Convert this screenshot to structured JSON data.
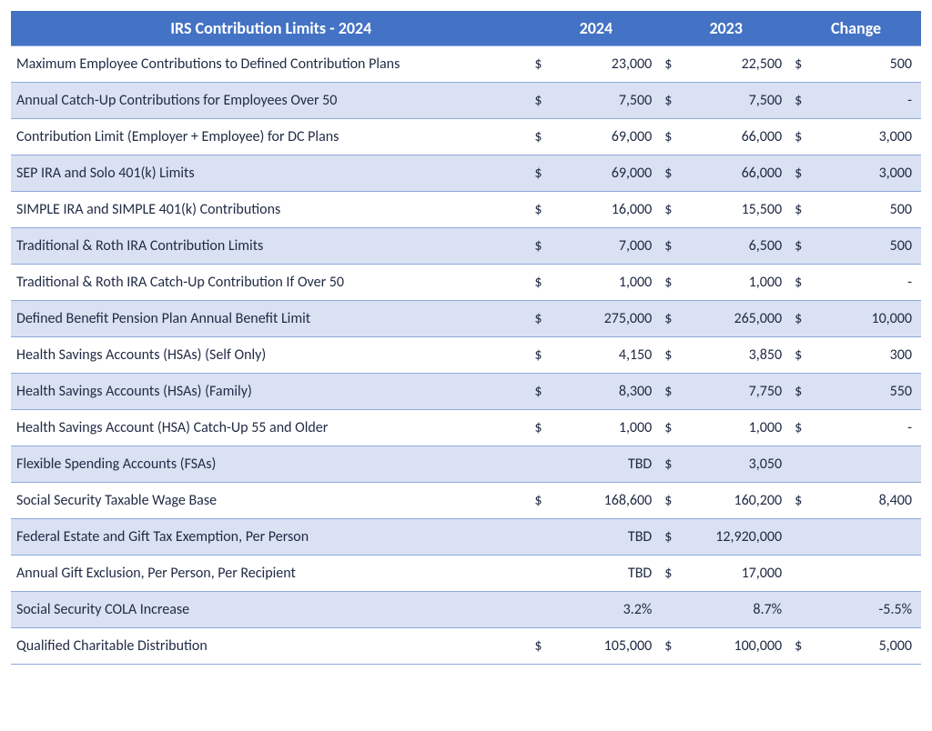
{
  "table": {
    "type": "table",
    "header_bg": "#4472c4",
    "header_fg": "#ffffff",
    "row_odd_bg": "#ffffff",
    "row_even_bg": "#d9e1f2",
    "border_color": "#8ea9db",
    "text_color": "#1f2a44",
    "header_fontsize": 18,
    "body_fontsize": 16,
    "columns": {
      "label": "IRS Contribution Limits - 2024",
      "y2024": "2024",
      "y2023": "2023",
      "change": "Change"
    },
    "rows": [
      {
        "label": "Maximum Employee Contributions to Defined Contribution Plans",
        "p24": "$",
        "v24": "23,000",
        "p23": "$",
        "v23": "22,500",
        "pc": "$",
        "vc": "500"
      },
      {
        "label": "Annual Catch-Up Contributions for Employees Over 50",
        "p24": "$",
        "v24": "7,500",
        "p23": "$",
        "v23": "7,500",
        "pc": "$",
        "vc": "-"
      },
      {
        "label": "Contribution Limit (Employer + Employee) for DC Plans",
        "p24": "$",
        "v24": "69,000",
        "p23": "$",
        "v23": "66,000",
        "pc": "$",
        "vc": "3,000"
      },
      {
        "label": "SEP IRA and Solo 401(k) Limits",
        "p24": "$",
        "v24": "69,000",
        "p23": "$",
        "v23": "66,000",
        "pc": "$",
        "vc": "3,000"
      },
      {
        "label": "SIMPLE IRA and SIMPLE 401(k) Contributions",
        "p24": "$",
        "v24": "16,000",
        "p23": "$",
        "v23": "15,500",
        "pc": "$",
        "vc": "500"
      },
      {
        "label": "Traditional & Roth IRA Contribution Limits",
        "p24": "$",
        "v24": "7,000",
        "p23": "$",
        "v23": "6,500",
        "pc": "$",
        "vc": "500"
      },
      {
        "label": "Traditional & Roth IRA Catch-Up Contribution If Over 50",
        "p24": "$",
        "v24": "1,000",
        "p23": "$",
        "v23": "1,000",
        "pc": "$",
        "vc": "-"
      },
      {
        "label": "Defined Benefit Pension Plan Annual Benefit Limit",
        "p24": "$",
        "v24": "275,000",
        "p23": "$",
        "v23": "265,000",
        "pc": "$",
        "vc": "10,000"
      },
      {
        "label": "Health Savings Accounts (HSAs) (Self Only)",
        "p24": "$",
        "v24": "4,150",
        "p23": "$",
        "v23": "3,850",
        "pc": "$",
        "vc": "300"
      },
      {
        "label": "Health Savings Accounts (HSAs) (Family)",
        "p24": "$",
        "v24": "8,300",
        "p23": "$",
        "v23": "7,750",
        "pc": "$",
        "vc": "550"
      },
      {
        "label": "Health Savings Account (HSA) Catch-Up 55 and Older",
        "p24": "$",
        "v24": "1,000",
        "p23": "$",
        "v23": "1,000",
        "pc": "$",
        "vc": "-"
      },
      {
        "label": "Flexible Spending Accounts (FSAs)",
        "p24": "",
        "v24": "TBD",
        "p23": "$",
        "v23": "3,050",
        "pc": "",
        "vc": ""
      },
      {
        "label": "Social Security Taxable Wage Base",
        "p24": "$",
        "v24": "168,600",
        "p23": "$",
        "v23": "160,200",
        "pc": "$",
        "vc": "8,400"
      },
      {
        "label": "Federal Estate and Gift Tax Exemption, Per Person",
        "p24": "",
        "v24": "TBD",
        "p23": "$",
        "v23": "12,920,000",
        "pc": "",
        "vc": ""
      },
      {
        "label": "Annual Gift Exclusion, Per Person, Per Recipient",
        "p24": "",
        "v24": "TBD",
        "p23": "$",
        "v23": "17,000",
        "pc": "",
        "vc": ""
      },
      {
        "label": "Social Security COLA Increase",
        "p24": "",
        "v24": "3.2%",
        "p23": "",
        "v23": "8.7%",
        "pc": "",
        "vc": "-5.5%"
      },
      {
        "label": "Qualified Charitable Distribution",
        "p24": "$",
        "v24": "105,000",
        "p23": "$",
        "v23": "100,000",
        "pc": "$",
        "vc": "5,000"
      }
    ]
  }
}
